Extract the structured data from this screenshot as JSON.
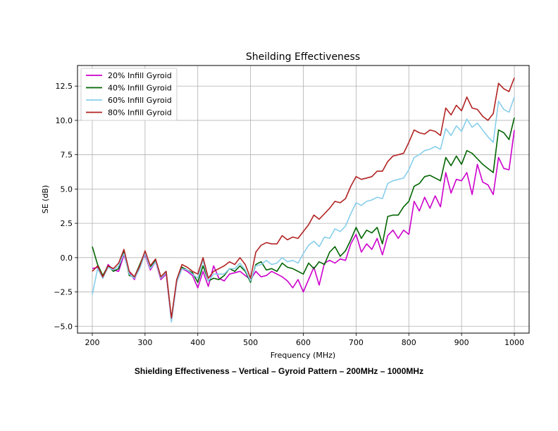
{
  "caption": "Shielding Effectiveness – Vertical – Gyroid Pattern – 200MHz – 1000MHz",
  "chart_data": {
    "type": "line",
    "title": "Sheilding Effectiveness",
    "xlabel": "Frequency (MHz)",
    "ylabel": "SE (dB)",
    "xlim": [
      172,
      1028
    ],
    "ylim": [
      -5.5,
      14.0
    ],
    "xticks": [
      200,
      300,
      400,
      500,
      600,
      700,
      800,
      900,
      1000
    ],
    "yticks": [
      -5.0,
      -2.5,
      0.0,
      2.5,
      5.0,
      7.5,
      10.0,
      12.5
    ],
    "xtick_labels": [
      "200",
      "300",
      "400",
      "500",
      "600",
      "700",
      "800",
      "900",
      "1000"
    ],
    "ytick_labels": [
      "−5.0",
      "−2.5",
      "0.0",
      "2.5",
      "5.0",
      "7.5",
      "10.0",
      "12.5"
    ],
    "grid": true,
    "legend_position": "top-left",
    "series": [
      {
        "name": "20% Infill Gyroid",
        "color": "#cc00cc",
        "x": [
          200,
          210,
          220,
          230,
          240,
          250,
          260,
          270,
          280,
          290,
          300,
          310,
          320,
          330,
          340,
          350,
          360,
          370,
          380,
          390,
          400,
          410,
          420,
          430,
          440,
          450,
          460,
          470,
          480,
          490,
          500,
          510,
          520,
          530,
          540,
          550,
          560,
          570,
          580,
          590,
          600,
          610,
          620,
          630,
          640,
          650,
          660,
          670,
          680,
          690,
          700,
          710,
          720,
          730,
          740,
          750,
          760,
          770,
          780,
          790,
          800,
          810,
          820,
          830,
          840,
          850,
          860,
          870,
          880,
          890,
          900,
          910,
          920,
          930,
          940,
          950,
          960,
          970,
          980,
          990,
          1000
        ],
        "y": [
          -0.8,
          -0.7,
          -1.5,
          -0.5,
          -0.9,
          -1.0,
          0.2,
          -1.1,
          -1.6,
          -0.6,
          0.2,
          -0.9,
          -0.3,
          -1.6,
          -1.2,
          -4.6,
          -1.8,
          -0.8,
          -1.0,
          -1.3,
          -2.2,
          -1.0,
          -2.1,
          -0.6,
          -1.5,
          -1.7,
          -1.2,
          -1.1,
          -1.0,
          -1.3,
          -1.6,
          -1.0,
          -1.4,
          -1.3,
          -1.0,
          -1.2,
          -1.4,
          -1.7,
          -2.2,
          -1.6,
          -2.5,
          -1.6,
          -0.7,
          -2.0,
          -0.4,
          -0.2,
          -0.4,
          -0.1,
          -0.2,
          1.0,
          1.7,
          0.4,
          1.0,
          0.6,
          1.4,
          0.2,
          1.6,
          2.0,
          1.4,
          2.0,
          1.7,
          4.1,
          3.4,
          4.4,
          3.6,
          4.5,
          3.7,
          6.2,
          4.7,
          5.7,
          5.6,
          6.2,
          4.6,
          6.8,
          5.5,
          5.3,
          4.6,
          7.3,
          6.5,
          6.4,
          9.3
        ]
      },
      {
        "name": "40% Infill Gyroid",
        "color": "#006400",
        "x": [
          200,
          210,
          220,
          230,
          240,
          250,
          260,
          270,
          280,
          290,
          300,
          310,
          320,
          330,
          340,
          350,
          360,
          370,
          380,
          390,
          400,
          410,
          420,
          430,
          440,
          450,
          460,
          470,
          480,
          490,
          500,
          510,
          520,
          530,
          540,
          550,
          560,
          570,
          580,
          590,
          600,
          610,
          620,
          630,
          640,
          650,
          660,
          670,
          680,
          690,
          700,
          710,
          720,
          730,
          740,
          750,
          760,
          770,
          780,
          790,
          800,
          810,
          820,
          830,
          840,
          850,
          860,
          870,
          880,
          890,
          900,
          910,
          920,
          930,
          940,
          950,
          960,
          970,
          980,
          990,
          1000
        ],
        "y": [
          0.8,
          -0.5,
          -1.3,
          -0.6,
          -1.0,
          -0.8,
          0.5,
          -1.3,
          -1.4,
          -0.5,
          0.4,
          -0.7,
          -0.2,
          -1.4,
          -1.0,
          -4.5,
          -1.7,
          -0.7,
          -0.9,
          -1.1,
          -1.8,
          -0.6,
          -1.7,
          -1.5,
          -1.6,
          -1.3,
          -0.8,
          -1.0,
          -0.6,
          -1.0,
          -1.8,
          -0.5,
          -0.3,
          -0.9,
          -0.8,
          -1.0,
          -0.4,
          -0.7,
          -0.8,
          -1.0,
          -1.2,
          -0.4,
          -0.8,
          -0.3,
          -0.5,
          0.4,
          0.8,
          0.1,
          0.5,
          1.3,
          2.2,
          1.4,
          2.0,
          1.8,
          2.2,
          1.0,
          3.0,
          3.1,
          3.1,
          3.7,
          4.1,
          5.2,
          5.4,
          5.9,
          6.0,
          5.8,
          5.6,
          7.3,
          6.7,
          7.4,
          6.8,
          7.8,
          7.6,
          7.2,
          6.8,
          6.5,
          6.2,
          9.3,
          9.1,
          8.6,
          10.2
        ]
      },
      {
        "name": "60% Infill Gyroid",
        "color": "#87ceeb",
        "x": [
          200,
          210,
          220,
          230,
          240,
          250,
          260,
          270,
          280,
          290,
          300,
          310,
          320,
          330,
          340,
          350,
          360,
          370,
          380,
          390,
          400,
          410,
          420,
          430,
          440,
          450,
          460,
          470,
          480,
          490,
          500,
          510,
          520,
          530,
          540,
          550,
          560,
          570,
          580,
          590,
          600,
          610,
          620,
          630,
          640,
          650,
          660,
          670,
          680,
          690,
          700,
          710,
          720,
          730,
          740,
          750,
          760,
          770,
          780,
          790,
          800,
          810,
          820,
          830,
          840,
          850,
          860,
          870,
          880,
          890,
          900,
          910,
          920,
          930,
          940,
          950,
          960,
          970,
          980,
          990,
          1000
        ],
        "y": [
          -2.7,
          -0.8,
          -1.5,
          -0.7,
          -0.9,
          -0.6,
          0.3,
          -1.2,
          -1.5,
          -0.8,
          0.3,
          -0.8,
          -0.3,
          -1.5,
          -1.1,
          -4.7,
          -1.8,
          -0.8,
          -0.9,
          -1.2,
          -1.5,
          -0.2,
          -1.7,
          -1.2,
          -1.2,
          -1.2,
          -0.8,
          -0.8,
          -0.4,
          -0.9,
          -1.7,
          -0.6,
          -0.5,
          -0.2,
          -0.5,
          -0.4,
          0.0,
          -0.3,
          -0.2,
          -0.4,
          0.3,
          0.9,
          1.2,
          0.8,
          1.5,
          1.4,
          2.1,
          1.9,
          2.3,
          3.2,
          4.0,
          3.8,
          4.1,
          4.2,
          4.4,
          4.3,
          5.4,
          5.6,
          5.7,
          5.8,
          6.4,
          7.3,
          7.5,
          7.8,
          7.9,
          8.1,
          7.9,
          9.4,
          8.9,
          9.6,
          9.2,
          10.1,
          9.5,
          9.8,
          9.3,
          8.8,
          8.4,
          11.4,
          10.8,
          10.6,
          11.7
        ]
      },
      {
        "name": "80% Infill Gyroid",
        "color": "#b22222",
        "x": [
          200,
          210,
          220,
          230,
          240,
          250,
          260,
          270,
          280,
          290,
          300,
          310,
          320,
          330,
          340,
          350,
          360,
          370,
          380,
          390,
          400,
          410,
          420,
          430,
          440,
          450,
          460,
          470,
          480,
          490,
          500,
          510,
          520,
          530,
          540,
          550,
          560,
          570,
          580,
          590,
          600,
          610,
          620,
          630,
          640,
          650,
          660,
          670,
          680,
          690,
          700,
          710,
          720,
          730,
          740,
          750,
          760,
          770,
          780,
          790,
          800,
          810,
          820,
          830,
          840,
          850,
          860,
          870,
          880,
          890,
          900,
          910,
          920,
          930,
          940,
          950,
          960,
          970,
          980,
          990,
          1000
        ],
        "y": [
          -1.0,
          -0.6,
          -1.4,
          -0.6,
          -0.8,
          -0.4,
          0.6,
          -1.0,
          -1.4,
          -0.6,
          0.5,
          -0.6,
          -0.1,
          -1.4,
          -1.0,
          -4.4,
          -1.6,
          -0.5,
          -0.7,
          -1.0,
          -1.2,
          0.0,
          -1.5,
          -1.0,
          -0.8,
          -0.6,
          -0.3,
          -0.5,
          0.0,
          -0.5,
          -1.5,
          0.4,
          0.9,
          1.1,
          1.0,
          1.0,
          1.6,
          1.3,
          1.5,
          1.4,
          1.9,
          2.4,
          3.1,
          2.8,
          3.2,
          3.6,
          4.1,
          4.0,
          4.3,
          5.2,
          5.9,
          5.7,
          5.8,
          5.9,
          6.3,
          6.3,
          7.0,
          7.4,
          7.5,
          7.6,
          8.4,
          9.3,
          9.1,
          9.0,
          9.3,
          9.2,
          8.9,
          10.9,
          10.4,
          11.1,
          10.7,
          11.7,
          10.9,
          10.8,
          10.3,
          10.0,
          10.5,
          12.7,
          12.3,
          12.1,
          13.1
        ]
      }
    ]
  }
}
